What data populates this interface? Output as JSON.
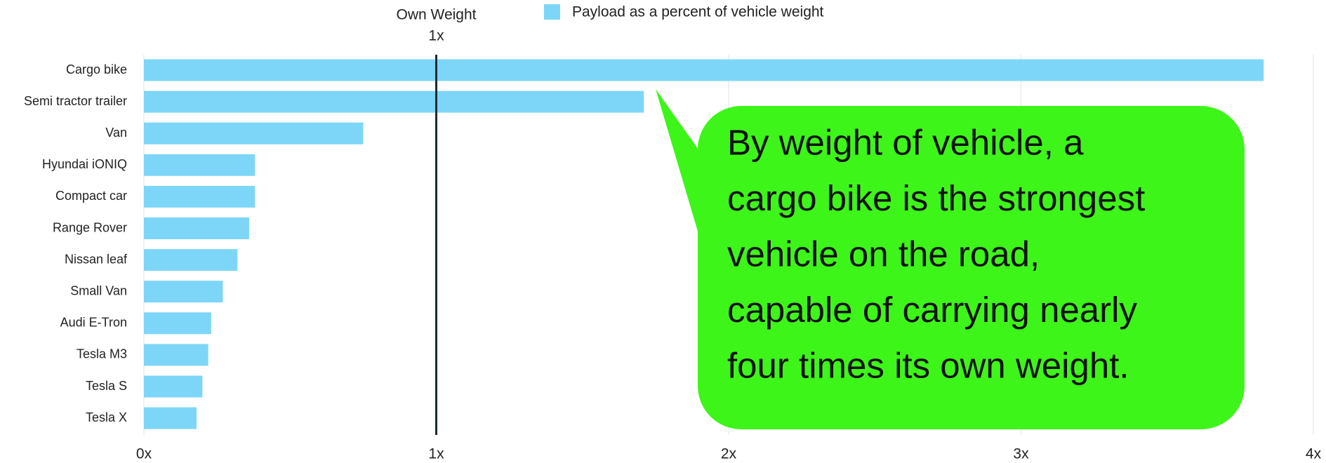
{
  "chart_data": {
    "type": "bar",
    "orientation": "horizontal",
    "categories": [
      "Cargo bike",
      "Semi tractor trailer",
      "Van",
      "Hyundai iONIQ",
      "Compact car",
      "Range Rover",
      "Nissan leaf",
      "Small Van",
      "Audi E-Tron",
      "Tesla M3",
      "Tesla S",
      "Tesla X"
    ],
    "series": [
      {
        "name": "Payload as a percent of vehicle weight",
        "color": "#7dd6f7",
        "values": [
          3.83,
          1.71,
          0.75,
          0.38,
          0.38,
          0.36,
          0.32,
          0.27,
          0.23,
          0.22,
          0.2,
          0.18
        ]
      }
    ],
    "xlim": [
      0,
      4
    ],
    "xticks": [
      {
        "value": 0,
        "label": "0x"
      },
      {
        "value": 1,
        "label": "1x"
      },
      {
        "value": 2,
        "label": "2x"
      },
      {
        "value": 3,
        "label": "3x"
      },
      {
        "value": 4,
        "label": "4x"
      }
    ],
    "grid": true,
    "legend": "top",
    "reference_line": {
      "value": 1,
      "label": "Own Weight",
      "value_label": "1x",
      "color": "#1b2b33"
    },
    "callout": {
      "color": "#3ef51a",
      "lines": [
        "By weight of vehicle, a",
        "cargo bike is the strongest",
        "vehicle on the road,",
        "capable of carrying nearly",
        "four times its own weight."
      ]
    }
  }
}
